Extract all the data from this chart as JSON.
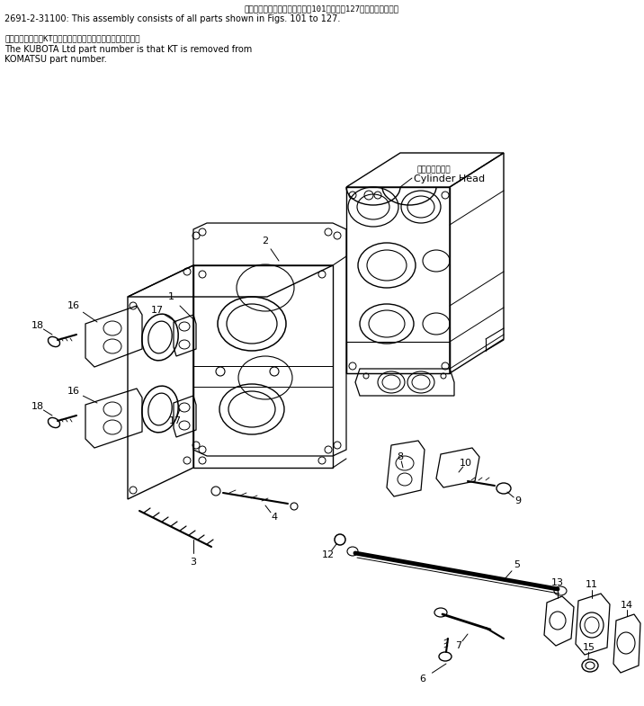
{
  "bg_color": "#ffffff",
  "fig_width": 7.16,
  "fig_height": 7.85,
  "dpi": 100,
  "header_line1_jp": "このアセンブリの構成部品は第101図から第127図まであります。",
  "header_line1_en": "2691-2-31100: This assembly consists of all parts shown in Figs. 101 to 127.",
  "header_line2_jp": "品番のメーカ記号KTを除いたものが久保田鉄工の品番です。",
  "header_line3_en": "The KUBOTA Ltd part number is that KT is removed from",
  "header_line4_en": "KOMATSU part number.",
  "cyl_head_jp": "シリンダヘッド",
  "cyl_head_en": "Cylinder Head"
}
